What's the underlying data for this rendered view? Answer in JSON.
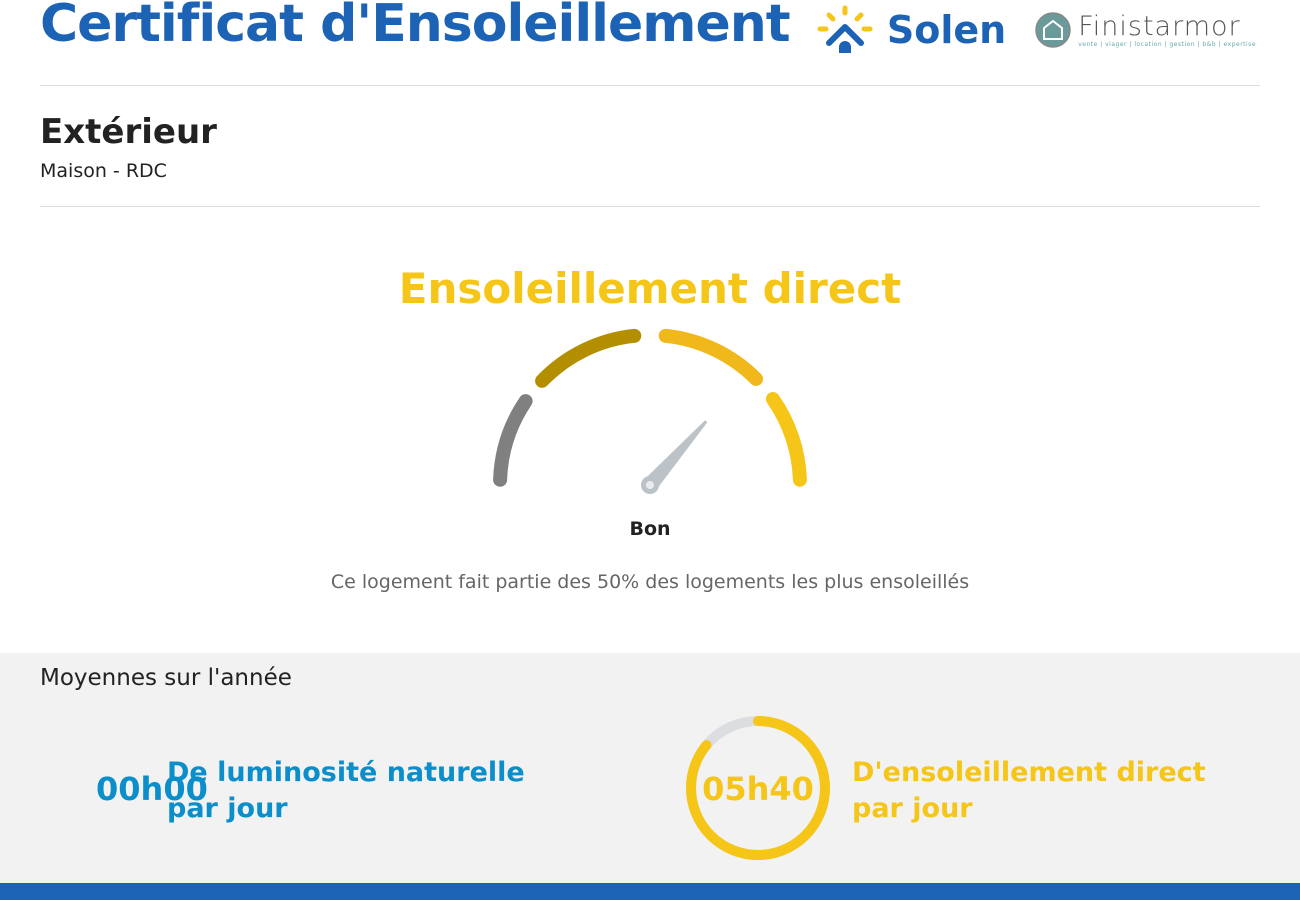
{
  "header": {
    "title": "Certificat d'Ensoleillement",
    "logos": {
      "solen": "Solen",
      "finistarmor": "Finistarmor",
      "finistarmor_tagline": "vente | viager | location | gestion | b&b | expertise"
    }
  },
  "room": {
    "name": "Extérieur",
    "subtitle": "Maison - RDC"
  },
  "gauge": {
    "title": "Ensoleillement direct",
    "rating": "Bon",
    "description": "Ce logement fait partie des 50% des logements les plus ensoleillés",
    "segment_colors": [
      "#808080",
      "#b38f00",
      "#f0b81a",
      "#f5c518"
    ],
    "needle_level": 0.73
  },
  "averages": {
    "title": "Moyennes sur l'année",
    "luminosity": {
      "value": "00h00",
      "label_line1": "De luminosité naturelle",
      "label_line2": "par jour",
      "color": "#0b8ec9"
    },
    "sunshine": {
      "value": "05h40",
      "label_line1": "D'ensoleillement direct",
      "label_line2": "par jour",
      "color": "#f5c518",
      "ring_fill": 0.86
    }
  }
}
